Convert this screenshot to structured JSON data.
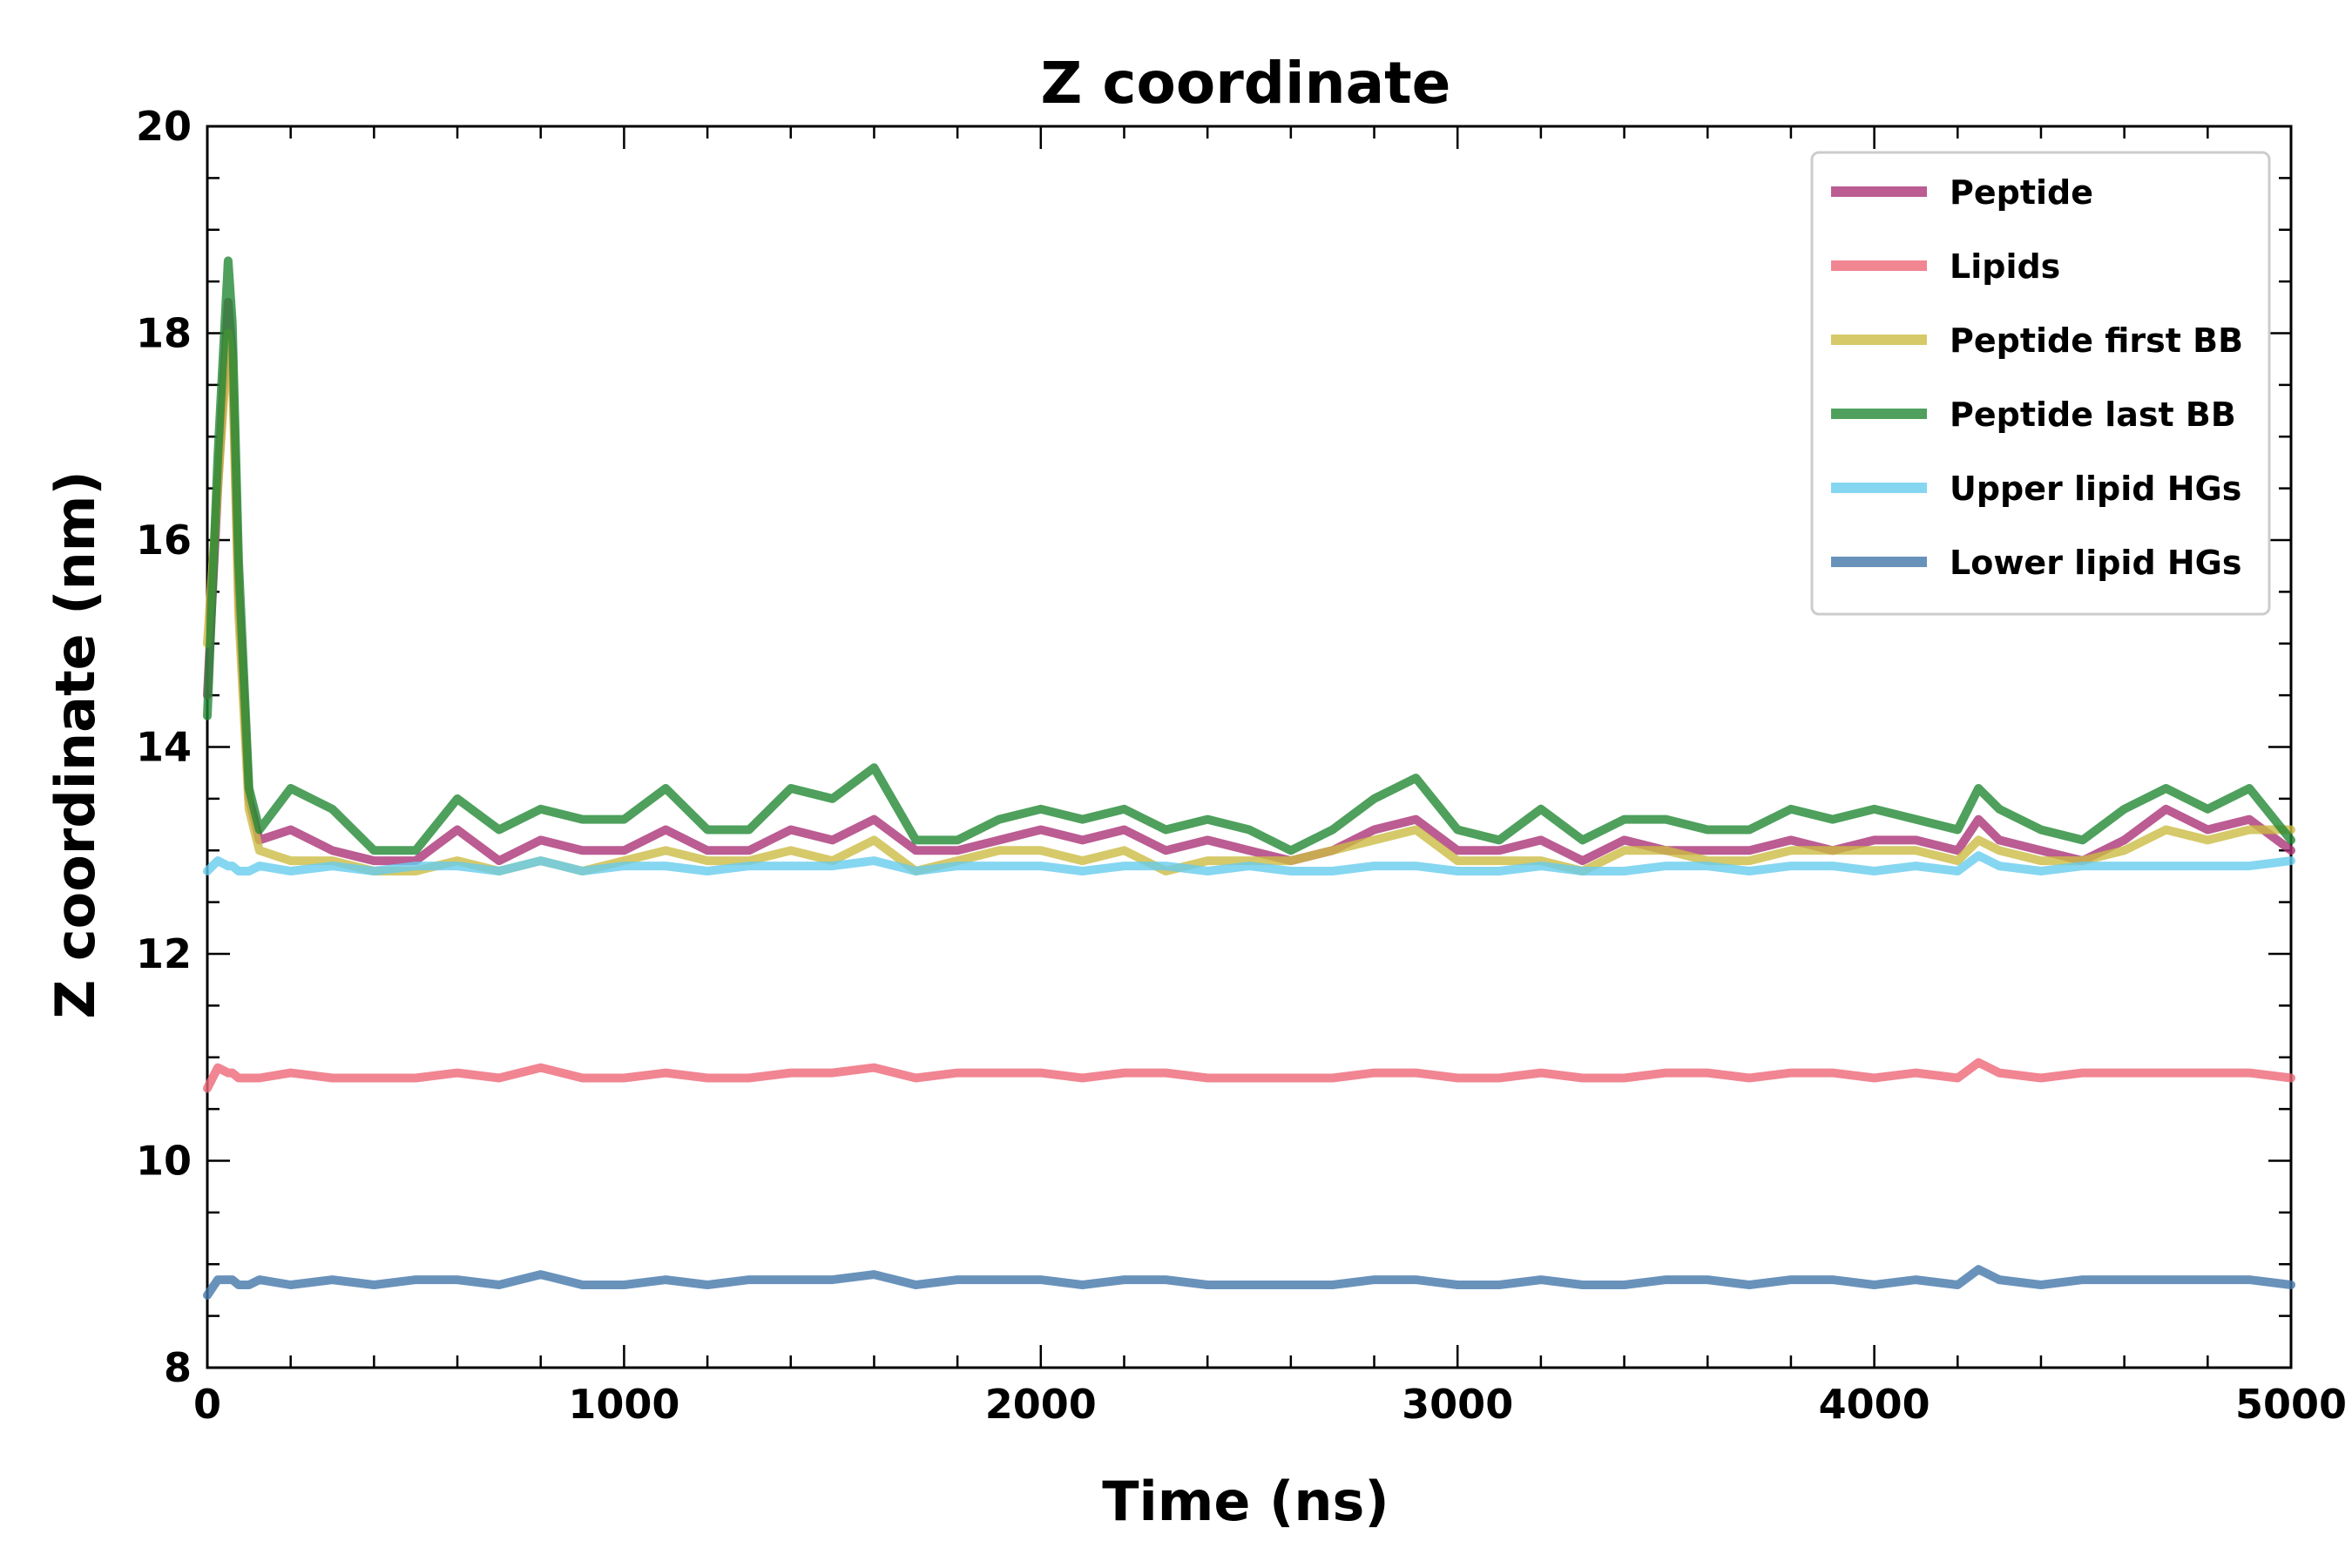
{
  "chart_data": {
    "type": "line",
    "title": "Z coordinate",
    "xlabel": "Time (ns)",
    "ylabel": "Z coordinate (nm)",
    "xlim": [
      0,
      5000
    ],
    "ylim": [
      8,
      20
    ],
    "xticks": [
      "0",
      "1000",
      "2000",
      "3000",
      "4000",
      "5000"
    ],
    "yticks": [
      "8",
      "10",
      "12",
      "14",
      "16",
      "18",
      "20"
    ],
    "grid": false,
    "legend_position": "top-right",
    "x": [
      0,
      25,
      50,
      60,
      75,
      100,
      125,
      200,
      300,
      400,
      500,
      600,
      700,
      800,
      900,
      1000,
      1100,
      1200,
      1300,
      1400,
      1500,
      1600,
      1700,
      1800,
      1900,
      2000,
      2100,
      2200,
      2300,
      2400,
      2500,
      2600,
      2700,
      2800,
      2900,
      3000,
      3100,
      3200,
      3300,
      3400,
      3500,
      3600,
      3700,
      3800,
      3900,
      4000,
      4100,
      4200,
      4250,
      4300,
      4400,
      4500,
      4600,
      4700,
      4800,
      4900,
      5000
    ],
    "series": [
      {
        "name": "Peptide",
        "color": "#AA3377",
        "values": [
          14.5,
          16.5,
          18.3,
          17.8,
          15.5,
          13.5,
          13.1,
          13.2,
          13.0,
          12.9,
          12.9,
          13.2,
          12.9,
          13.1,
          13.0,
          13.0,
          13.2,
          13.0,
          13.0,
          13.2,
          13.1,
          13.3,
          13.0,
          13.0,
          13.1,
          13.2,
          13.1,
          13.2,
          13.0,
          13.1,
          13.0,
          12.9,
          13.0,
          13.2,
          13.3,
          13.0,
          13.0,
          13.1,
          12.9,
          13.1,
          13.0,
          13.0,
          13.0,
          13.1,
          13.0,
          13.1,
          13.1,
          13.0,
          13.3,
          13.1,
          13.0,
          12.9,
          13.1,
          13.4,
          13.2,
          13.3,
          13.0
        ]
      },
      {
        "name": "Lipids",
        "color": "#EE6677",
        "values": [
          10.7,
          10.9,
          10.85,
          10.85,
          10.8,
          10.8,
          10.8,
          10.85,
          10.8,
          10.8,
          10.8,
          10.85,
          10.8,
          10.9,
          10.8,
          10.8,
          10.85,
          10.8,
          10.8,
          10.85,
          10.85,
          10.9,
          10.8,
          10.85,
          10.85,
          10.85,
          10.8,
          10.85,
          10.85,
          10.8,
          10.8,
          10.8,
          10.8,
          10.85,
          10.85,
          10.8,
          10.8,
          10.85,
          10.8,
          10.8,
          10.85,
          10.85,
          10.8,
          10.85,
          10.85,
          10.8,
          10.85,
          10.8,
          10.95,
          10.85,
          10.8,
          10.85,
          10.85,
          10.85,
          10.85,
          10.85,
          10.8
        ]
      },
      {
        "name": "Peptide first BB",
        "color": "#CCBB44",
        "values": [
          15.0,
          16.5,
          18.0,
          17.7,
          15.3,
          13.4,
          13.0,
          12.9,
          12.9,
          12.8,
          12.8,
          12.9,
          12.8,
          12.9,
          12.8,
          12.9,
          13.0,
          12.9,
          12.9,
          13.0,
          12.9,
          13.1,
          12.8,
          12.9,
          13.0,
          13.0,
          12.9,
          13.0,
          12.8,
          12.9,
          12.9,
          12.9,
          13.0,
          13.1,
          13.2,
          12.9,
          12.9,
          12.9,
          12.8,
          13.0,
          13.0,
          12.9,
          12.9,
          13.0,
          13.0,
          13.0,
          13.0,
          12.9,
          13.1,
          13.0,
          12.9,
          12.9,
          13.0,
          13.2,
          13.1,
          13.2,
          13.2
        ]
      },
      {
        "name": "Peptide last BB",
        "color": "#228833",
        "values": [
          14.3,
          16.8,
          18.7,
          18.1,
          15.8,
          13.6,
          13.2,
          13.6,
          13.4,
          13.0,
          13.0,
          13.5,
          13.2,
          13.4,
          13.3,
          13.3,
          13.6,
          13.2,
          13.2,
          13.6,
          13.5,
          13.8,
          13.1,
          13.1,
          13.3,
          13.4,
          13.3,
          13.4,
          13.2,
          13.3,
          13.2,
          13.0,
          13.2,
          13.5,
          13.7,
          13.2,
          13.1,
          13.4,
          13.1,
          13.3,
          13.3,
          13.2,
          13.2,
          13.4,
          13.3,
          13.4,
          13.3,
          13.2,
          13.6,
          13.4,
          13.2,
          13.1,
          13.4,
          13.6,
          13.4,
          13.6,
          13.1
        ]
      },
      {
        "name": "Upper lipid HGs",
        "color": "#66CCEE",
        "values": [
          12.8,
          12.9,
          12.85,
          12.85,
          12.8,
          12.8,
          12.85,
          12.8,
          12.85,
          12.8,
          12.85,
          12.85,
          12.8,
          12.9,
          12.8,
          12.85,
          12.85,
          12.8,
          12.85,
          12.85,
          12.85,
          12.9,
          12.8,
          12.85,
          12.85,
          12.85,
          12.8,
          12.85,
          12.85,
          12.8,
          12.85,
          12.8,
          12.8,
          12.85,
          12.85,
          12.8,
          12.8,
          12.85,
          12.8,
          12.8,
          12.85,
          12.85,
          12.8,
          12.85,
          12.85,
          12.8,
          12.85,
          12.8,
          12.95,
          12.85,
          12.8,
          12.85,
          12.85,
          12.85,
          12.85,
          12.85,
          12.9
        ]
      },
      {
        "name": "Lower lipid HGs",
        "color": "#4477AA",
        "values": [
          8.7,
          8.85,
          8.85,
          8.85,
          8.8,
          8.8,
          8.85,
          8.8,
          8.85,
          8.8,
          8.85,
          8.85,
          8.8,
          8.9,
          8.8,
          8.8,
          8.85,
          8.8,
          8.85,
          8.85,
          8.85,
          8.9,
          8.8,
          8.85,
          8.85,
          8.85,
          8.8,
          8.85,
          8.85,
          8.8,
          8.8,
          8.8,
          8.8,
          8.85,
          8.85,
          8.8,
          8.8,
          8.85,
          8.8,
          8.8,
          8.85,
          8.85,
          8.8,
          8.85,
          8.85,
          8.8,
          8.85,
          8.8,
          8.95,
          8.85,
          8.8,
          8.85,
          8.85,
          8.85,
          8.85,
          8.85,
          8.8
        ]
      }
    ]
  }
}
